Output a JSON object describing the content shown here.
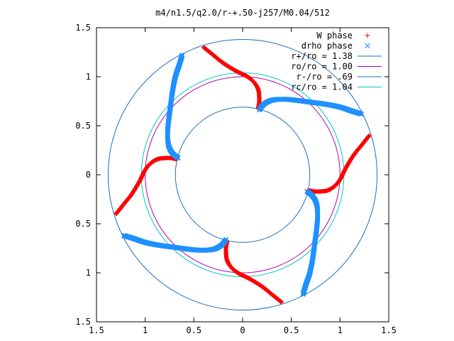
{
  "chart_data": {
    "type": "scatter",
    "title": "m4/n1.5/q2.0/r-+.50-j257/M0.04/512",
    "xlabel": "",
    "ylabel": "",
    "xlim": [
      -1.5,
      1.5
    ],
    "ylim": [
      -1.5,
      1.5
    ],
    "x_ticks": [
      -1.5,
      -1,
      -0.5,
      0,
      0.5,
      1,
      1.5
    ],
    "x_tick_labels": [
      "1.5",
      "1",
      "0.5",
      "0",
      "0.5",
      "1",
      "1.5"
    ],
    "y_ticks": [
      1.5,
      1,
      0.5,
      0,
      -0.5,
      -1,
      -1.5
    ],
    "y_tick_labels": [
      "1.5",
      "1",
      "0.5",
      "0",
      "0.5",
      "1",
      "1.5"
    ],
    "grid": false,
    "legend_position": "top-right",
    "series": [
      {
        "name": "W phase",
        "kind": "points",
        "marker": "plus",
        "color": "#ff0000",
        "arm_template": [
          [
            1.3,
            0.4
          ],
          [
            1.22,
            0.3
          ],
          [
            1.14,
            0.2
          ],
          [
            1.06,
            0.07
          ],
          [
            1.0,
            -0.05
          ],
          [
            0.94,
            -0.12
          ],
          [
            0.87,
            -0.16
          ],
          [
            0.8,
            -0.17
          ],
          [
            0.73,
            -0.17
          ],
          [
            0.68,
            -0.16
          ],
          [
            0.67,
            -0.17
          ]
        ],
        "symmetry_rotations_deg": [
          0,
          90,
          180,
          270
        ]
      },
      {
        "name": "drho phase",
        "kind": "points",
        "marker": "cross",
        "color": "#1e90ff",
        "arm_template": [
          [
            0.66,
            -0.17
          ],
          [
            0.72,
            -0.22
          ],
          [
            0.76,
            -0.3
          ],
          [
            0.77,
            -0.42
          ],
          [
            0.76,
            -0.55
          ],
          [
            0.74,
            -0.7
          ],
          [
            0.72,
            -0.85
          ],
          [
            0.69,
            -1.0
          ],
          [
            0.65,
            -1.12
          ],
          [
            0.62,
            -1.22
          ]
        ],
        "symmetry_rotations_deg": [
          0,
          90,
          180,
          270
        ]
      },
      {
        "name": "r+/ro = 1.38",
        "kind": "circle",
        "radius": 1.38,
        "color": "#1a6fc0"
      },
      {
        "name": "ro/ro = 1.00",
        "kind": "circle",
        "radius": 1.0,
        "color": "#b400b4"
      },
      {
        "name": "r-/ro = .69",
        "kind": "circle",
        "radius": 0.69,
        "color": "#1a6fc0"
      },
      {
        "name": "rc/ro = 1.04",
        "kind": "circle",
        "radius": 1.04,
        "color": "#00c8c8"
      }
    ]
  }
}
